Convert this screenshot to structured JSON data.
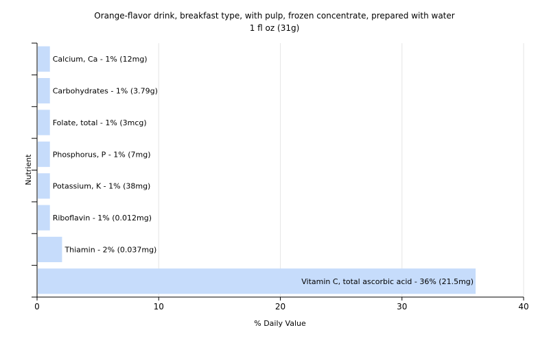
{
  "chart_data": {
    "type": "bar",
    "orientation": "horizontal",
    "title": "Orange-flavor drink, breakfast type, with pulp, frozen concentrate, prepared with water",
    "subtitle": "1 fl oz (31g)",
    "xlabel": "% Daily Value",
    "ylabel": "Nutrient",
    "xlim": [
      0,
      40
    ],
    "xticks": [
      0,
      10,
      20,
      30,
      40
    ],
    "grid": true,
    "bar_color": "#c6dcfb",
    "categories": [
      "Calcium, Ca",
      "Carbohydrates",
      "Folate, total",
      "Phosphorus, P",
      "Potassium, K",
      "Riboflavin",
      "Thiamin",
      "Vitamin C, total ascorbic acid"
    ],
    "values": [
      1,
      1,
      1,
      1,
      1,
      1,
      2,
      36
    ],
    "labels": [
      "Calcium, Ca - 1% (12mg)",
      "Carbohydrates - 1% (3.79g)",
      "Folate, total - 1% (3mcg)",
      "Phosphorus, P - 1% (7mg)",
      "Potassium, K - 1% (38mg)",
      "Riboflavin - 1% (0.012mg)",
      "Thiamin - 2% (0.037mg)",
      "Vitamin C, total ascorbic acid - 36% (21.5mg)"
    ]
  }
}
